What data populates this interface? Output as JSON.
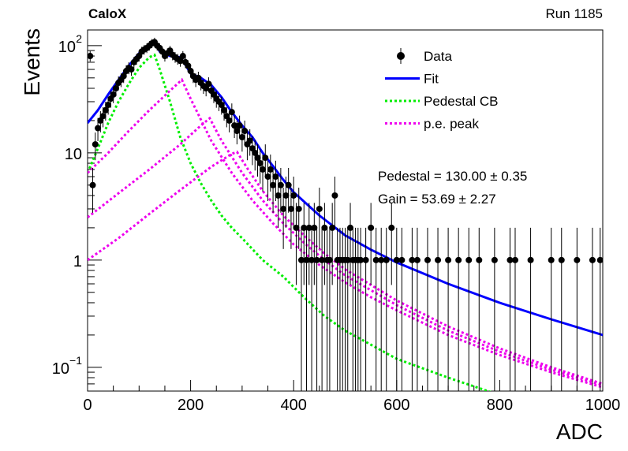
{
  "header": {
    "experiment": "CaloX",
    "run": "Run 1185"
  },
  "chart_data": {
    "type": "scatter",
    "xlabel": "ADC",
    "ylabel": "Events",
    "xlim": [
      0,
      1000
    ],
    "ylim": [
      0.06,
      140
    ],
    "yscale": "log",
    "x_ticks": [
      0,
      200,
      400,
      600,
      800,
      1000
    ],
    "y_ticks": [
      {
        "value": 0.1,
        "label": "10",
        "sup": "−1"
      },
      {
        "value": 1,
        "label": "1",
        "sup": ""
      },
      {
        "value": 10,
        "label": "10",
        "sup": ""
      },
      {
        "value": 100,
        "label": "10",
        "sup": "2"
      }
    ],
    "legend": {
      "placement": "top-right",
      "entries": [
        {
          "label": "Data",
          "style": "marker"
        },
        {
          "label": "Fit",
          "style": "line",
          "color": "#0000ff"
        },
        {
          "label": "Pedestal CB",
          "style": "dotted",
          "color": "#00ee00"
        },
        {
          "label": "p.e. peak",
          "style": "dotted",
          "color": "#ee00ee"
        }
      ]
    },
    "annotations": {
      "pedestal": "Pedestal = 130.00 ± 0.35",
      "gain": "Gain = 53.69 ± 2.27"
    },
    "data_points": [
      {
        "x": 5,
        "y": 80
      },
      {
        "x": 10,
        "y": 5
      },
      {
        "x": 15,
        "y": 12
      },
      {
        "x": 20,
        "y": 17
      },
      {
        "x": 25,
        "y": 20
      },
      {
        "x": 30,
        "y": 22
      },
      {
        "x": 35,
        "y": 25
      },
      {
        "x": 40,
        "y": 28
      },
      {
        "x": 45,
        "y": 32
      },
      {
        "x": 50,
        "y": 35
      },
      {
        "x": 55,
        "y": 40
      },
      {
        "x": 60,
        "y": 45
      },
      {
        "x": 65,
        "y": 48
      },
      {
        "x": 70,
        "y": 52
      },
      {
        "x": 75,
        "y": 58
      },
      {
        "x": 80,
        "y": 62
      },
      {
        "x": 85,
        "y": 60
      },
      {
        "x": 90,
        "y": 70
      },
      {
        "x": 95,
        "y": 75
      },
      {
        "x": 100,
        "y": 80
      },
      {
        "x": 105,
        "y": 88
      },
      {
        "x": 110,
        "y": 92
      },
      {
        "x": 115,
        "y": 95
      },
      {
        "x": 120,
        "y": 100
      },
      {
        "x": 125,
        "y": 105
      },
      {
        "x": 130,
        "y": 108
      },
      {
        "x": 135,
        "y": 100
      },
      {
        "x": 140,
        "y": 95
      },
      {
        "x": 145,
        "y": 88
      },
      {
        "x": 150,
        "y": 80
      },
      {
        "x": 155,
        "y": 85
      },
      {
        "x": 160,
        "y": 90
      },
      {
        "x": 165,
        "y": 82
      },
      {
        "x": 170,
        "y": 78
      },
      {
        "x": 175,
        "y": 75
      },
      {
        "x": 180,
        "y": 72
      },
      {
        "x": 185,
        "y": 80
      },
      {
        "x": 190,
        "y": 70
      },
      {
        "x": 195,
        "y": 65
      },
      {
        "x": 200,
        "y": 58
      },
      {
        "x": 205,
        "y": 52
      },
      {
        "x": 210,
        "y": 48
      },
      {
        "x": 215,
        "y": 50
      },
      {
        "x": 220,
        "y": 45
      },
      {
        "x": 225,
        "y": 42
      },
      {
        "x": 230,
        "y": 40
      },
      {
        "x": 235,
        "y": 44
      },
      {
        "x": 240,
        "y": 38
      },
      {
        "x": 245,
        "y": 35
      },
      {
        "x": 250,
        "y": 32
      },
      {
        "x": 255,
        "y": 30
      },
      {
        "x": 260,
        "y": 28
      },
      {
        "x": 265,
        "y": 25
      },
      {
        "x": 270,
        "y": 22
      },
      {
        "x": 275,
        "y": 20
      },
      {
        "x": 280,
        "y": 24
      },
      {
        "x": 285,
        "y": 18
      },
      {
        "x": 290,
        "y": 16
      },
      {
        "x": 295,
        "y": 18
      },
      {
        "x": 300,
        "y": 14
      },
      {
        "x": 305,
        "y": 16
      },
      {
        "x": 310,
        "y": 12
      },
      {
        "x": 315,
        "y": 13
      },
      {
        "x": 320,
        "y": 11
      },
      {
        "x": 325,
        "y": 10
      },
      {
        "x": 330,
        "y": 9
      },
      {
        "x": 335,
        "y": 8
      },
      {
        "x": 340,
        "y": 7
      },
      {
        "x": 345,
        "y": 9
      },
      {
        "x": 350,
        "y": 6
      },
      {
        "x": 355,
        "y": 7
      },
      {
        "x": 360,
        "y": 5
      },
      {
        "x": 365,
        "y": 6
      },
      {
        "x": 370,
        "y": 4
      },
      {
        "x": 375,
        "y": 5
      },
      {
        "x": 380,
        "y": 3
      },
      {
        "x": 385,
        "y": 4
      },
      {
        "x": 390,
        "y": 5
      },
      {
        "x": 395,
        "y": 3
      },
      {
        "x": 400,
        "y": 4
      },
      {
        "x": 405,
        "y": 2
      },
      {
        "x": 410,
        "y": 3
      },
      {
        "x": 415,
        "y": 1
      },
      {
        "x": 420,
        "y": 2
      },
      {
        "x": 425,
        "y": 1
      },
      {
        "x": 430,
        "y": 2
      },
      {
        "x": 435,
        "y": 1
      },
      {
        "x": 440,
        "y": 2
      },
      {
        "x": 445,
        "y": 1
      },
      {
        "x": 450,
        "y": 3
      },
      {
        "x": 455,
        "y": 1
      },
      {
        "x": 460,
        "y": 2
      },
      {
        "x": 465,
        "y": 1
      },
      {
        "x": 470,
        "y": 1
      },
      {
        "x": 475,
        "y": 2
      },
      {
        "x": 480,
        "y": 4
      },
      {
        "x": 485,
        "y": 1
      },
      {
        "x": 490,
        "y": 1
      },
      {
        "x": 495,
        "y": 1
      },
      {
        "x": 500,
        "y": 1
      },
      {
        "x": 505,
        "y": 1
      },
      {
        "x": 510,
        "y": 2
      },
      {
        "x": 515,
        "y": 1
      },
      {
        "x": 520,
        "y": 1
      },
      {
        "x": 525,
        "y": 1
      },
      {
        "x": 530,
        "y": 1
      },
      {
        "x": 540,
        "y": 1
      },
      {
        "x": 550,
        "y": 2
      },
      {
        "x": 560,
        "y": 1
      },
      {
        "x": 570,
        "y": 1
      },
      {
        "x": 580,
        "y": 1
      },
      {
        "x": 590,
        "y": 2
      },
      {
        "x": 600,
        "y": 1
      },
      {
        "x": 610,
        "y": 1
      },
      {
        "x": 630,
        "y": 1
      },
      {
        "x": 640,
        "y": 1
      },
      {
        "x": 660,
        "y": 1
      },
      {
        "x": 680,
        "y": 1
      },
      {
        "x": 700,
        "y": 1
      },
      {
        "x": 720,
        "y": 1
      },
      {
        "x": 740,
        "y": 1
      },
      {
        "x": 760,
        "y": 1
      },
      {
        "x": 790,
        "y": 1
      },
      {
        "x": 820,
        "y": 1
      },
      {
        "x": 830,
        "y": 1
      },
      {
        "x": 860,
        "y": 1
      },
      {
        "x": 900,
        "y": 1
      },
      {
        "x": 920,
        "y": 1
      },
      {
        "x": 950,
        "y": 1
      },
      {
        "x": 980,
        "y": 1
      },
      {
        "x": 995,
        "y": 1
      }
    ],
    "series": [
      {
        "name": "Fit",
        "color": "#0000ff",
        "style": "solid",
        "x": [
          0,
          20,
          40,
          60,
          80,
          100,
          120,
          130,
          140,
          160,
          180,
          190,
          200,
          220,
          240,
          260,
          280,
          300,
          320,
          340,
          360,
          380,
          400,
          450,
          500,
          550,
          600,
          700,
          800,
          900,
          1000
        ],
        "y": [
          19,
          25,
          35,
          48,
          65,
          85,
          103,
          110,
          88,
          80,
          78,
          66,
          55,
          50,
          43,
          33,
          24,
          18,
          14,
          10,
          7.5,
          5.6,
          4.3,
          2.6,
          1.7,
          1.25,
          0.95,
          0.6,
          0.4,
          0.28,
          0.2
        ]
      },
      {
        "name": "Pedestal CB",
        "color": "#00ee00",
        "style": "dotted",
        "x": [
          0,
          20,
          40,
          60,
          80,
          100,
          120,
          130,
          140,
          160,
          180,
          200,
          220,
          240,
          260,
          280,
          300,
          340,
          380,
          420,
          460,
          500,
          600,
          700,
          800
        ],
        "y": [
          6.5,
          11,
          19,
          30,
          44,
          62,
          78,
          82,
          60,
          30,
          14,
          8,
          5.2,
          3.6,
          2.6,
          2,
          1.6,
          1.0,
          0.7,
          0.45,
          0.3,
          0.22,
          0.12,
          0.08,
          0.055
        ]
      },
      {
        "name": "p.e. peak 1",
        "color": "#ee00ee",
        "style": "dotted",
        "x": [
          0,
          40,
          80,
          120,
          160,
          183,
          200,
          240,
          280,
          320,
          360,
          400,
          450,
          500,
          550,
          600,
          700,
          800,
          900,
          1000
        ],
        "y": [
          6.5,
          10,
          16,
          25,
          38,
          48,
          32,
          13,
          6.5,
          3.6,
          2.2,
          1.4,
          0.9,
          0.62,
          0.45,
          0.34,
          0.2,
          0.13,
          0.09,
          0.065
        ]
      },
      {
        "name": "p.e. peak 2",
        "color": "#ee00ee",
        "style": "dotted",
        "x": [
          0,
          60,
          120,
          180,
          220,
          237,
          260,
          300,
          340,
          380,
          420,
          460,
          500,
          600,
          700,
          800,
          900,
          1000
        ],
        "y": [
          2.5,
          4.2,
          7,
          12,
          18,
          21,
          13,
          6.5,
          3.6,
          2.2,
          1.45,
          1.0,
          0.72,
          0.38,
          0.22,
          0.14,
          0.095,
          0.068
        ]
      },
      {
        "name": "p.e. peak 3",
        "color": "#ee00ee",
        "style": "dotted",
        "x": [
          0,
          60,
          120,
          180,
          240,
          280,
          290,
          310,
          340,
          380,
          420,
          460,
          500,
          600,
          700,
          800,
          900,
          1000
        ],
        "y": [
          1.0,
          1.6,
          2.7,
          4.5,
          7.4,
          9.8,
          10.2,
          7.2,
          4.4,
          2.6,
          1.7,
          1.15,
          0.82,
          0.42,
          0.24,
          0.15,
          0.1,
          0.07
        ]
      }
    ]
  }
}
